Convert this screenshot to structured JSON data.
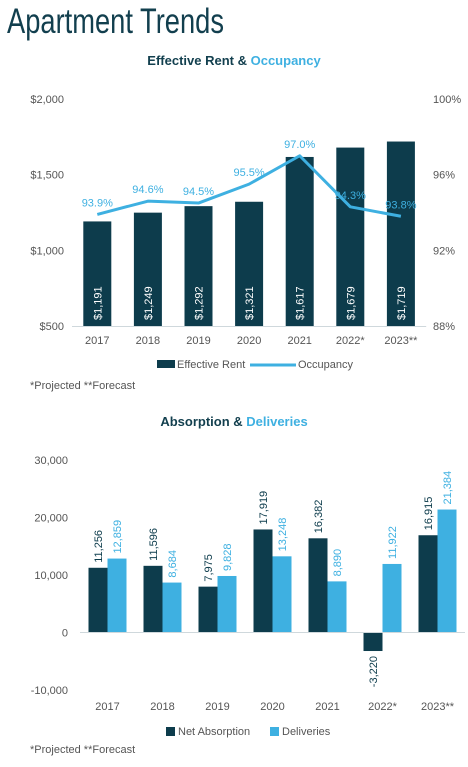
{
  "page_title": "Apartment Trends",
  "chart1": {
    "title_main": "Effective Rent & ",
    "title_accent": "Occupancy",
    "footnote": "*Projected **Forecast"
  },
  "chart2": {
    "title_main": "Absorption & ",
    "title_accent": "Deliveries",
    "footnote": "*Projected **Forecast"
  },
  "colors": {
    "dark": "#0d3c4c",
    "light": "#3eb0e1",
    "title": "#123f4e"
  },
  "chart_data": [
    {
      "type": "bar",
      "title": "Effective Rent & Occupancy",
      "categories": [
        "2017",
        "2018",
        "2019",
        "2020",
        "2021",
        "2022*",
        "2023**"
      ],
      "series": [
        {
          "name": "Effective Rent",
          "kind": "bar",
          "axis": "left",
          "values": [
            1191,
            1249,
            1292,
            1321,
            1617,
            1679,
            1719
          ],
          "labels": [
            "$1,191",
            "$1,249",
            "$1,292",
            "$1,321",
            "$1,617",
            "$1,679",
            "$1,719"
          ]
        },
        {
          "name": "Occupancy",
          "kind": "line",
          "axis": "right",
          "values": [
            93.9,
            94.6,
            94.5,
            95.5,
            97.0,
            94.3,
            93.8
          ],
          "labels": [
            "93.9%",
            "94.6%",
            "94.5%",
            "95.5%",
            "97.0%",
            "94.3%",
            "93.8%"
          ]
        }
      ],
      "ylim_left": [
        500,
        2000
      ],
      "ylim_right": [
        88,
        100
      ],
      "yticks_left": [
        500,
        1000,
        1500,
        2000
      ],
      "yticklabels_left": [
        "$500",
        "$1,000",
        "$1,500",
        "$2,000"
      ],
      "yticks_right": [
        88,
        92,
        96,
        100
      ],
      "yticklabels_right": [
        "88%",
        "92%",
        "96%",
        "100%"
      ],
      "legend": [
        "Effective Rent",
        "Occupancy"
      ],
      "legend_position": "bottom"
    },
    {
      "type": "bar",
      "title": "Absorption & Deliveries",
      "categories": [
        "2017",
        "2018",
        "2019",
        "2020",
        "2021",
        "2022*",
        "2023**"
      ],
      "series": [
        {
          "name": "Net Absorption",
          "values": [
            11256,
            11596,
            7975,
            17919,
            16382,
            -3220,
            16915
          ],
          "labels": [
            "11,256",
            "11,596",
            "7,975",
            "17,919",
            "16,382",
            "-3,220",
            "16,915"
          ]
        },
        {
          "name": "Deliveries",
          "values": [
            12859,
            8684,
            9828,
            13248,
            8890,
            11922,
            21384
          ],
          "labels": [
            "12,859",
            "8,684",
            "9,828",
            "13,248",
            "8,890",
            "11,922",
            "21,384"
          ]
        }
      ],
      "ylim": [
        -10000,
        30000
      ],
      "yticks": [
        -10000,
        0,
        10000,
        20000,
        30000
      ],
      "yticklabels": [
        "-10,000",
        "0",
        "10,000",
        "20,000",
        "30,000"
      ],
      "legend": [
        "Net Absorption",
        "Deliveries"
      ],
      "legend_position": "bottom"
    }
  ]
}
